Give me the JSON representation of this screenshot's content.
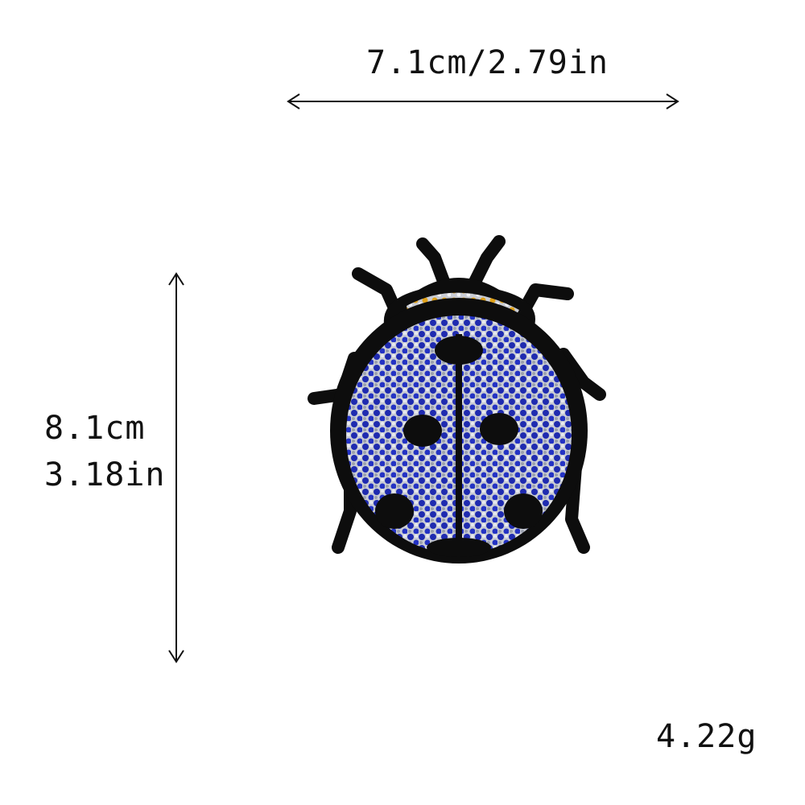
{
  "dimensions": {
    "width_label": "7.1cm/2.79in",
    "height_cm": "8.1cm",
    "height_in": "3.18in",
    "weight": "4.22g"
  },
  "product": {
    "subject": "ladybug-rhinestone-patch",
    "colors": {
      "outline": "#0d0d0d",
      "blue": "#1f2bb0",
      "silver": "#c9ccd4",
      "gold": "#e0a21a"
    }
  }
}
